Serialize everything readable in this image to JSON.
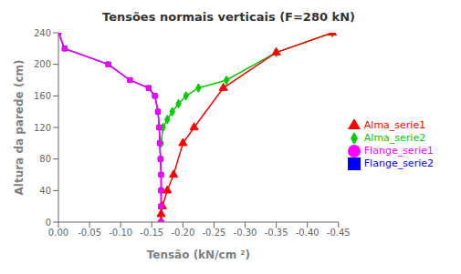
{
  "chart_data": {
    "type": "line",
    "title": "Tensões normais verticais (F=280 kN)",
    "xlabel": "Tensão (kN/cm ²)",
    "ylabel": "Altura da parede (cm)",
    "xlim": [
      0.0,
      -0.45
    ],
    "ylim": [
      0,
      240
    ],
    "xticks": [
      {
        "value": 0.0,
        "label": "0.00"
      },
      {
        "value": -0.05,
        "label": "-0.05"
      },
      {
        "value": -0.1,
        "label": "-0.10"
      },
      {
        "value": -0.15,
        "label": "-0.15"
      },
      {
        "value": -0.2,
        "label": "-0.20"
      },
      {
        "value": -0.25,
        "label": "-0.25"
      },
      {
        "value": -0.3,
        "label": "-0.30"
      },
      {
        "value": -0.35,
        "label": "-0.35"
      },
      {
        "value": -0.4,
        "label": "-0.40"
      },
      {
        "value": -0.45,
        "label": "-0.45"
      }
    ],
    "yticks": [
      0,
      40,
      80,
      120,
      160,
      200,
      240
    ],
    "grid": false,
    "legend": "right",
    "series": [
      {
        "name": "Flange_serie2",
        "color": "#0000FF",
        "marker": "square",
        "x": [
          0.0,
          -0.01,
          -0.08,
          -0.115,
          -0.145,
          -0.155,
          -0.16,
          -0.162,
          -0.163,
          -0.164,
          -0.165,
          -0.165,
          -0.165,
          -0.165
        ],
        "values": [
          240,
          220,
          200,
          180,
          170,
          160,
          140,
          120,
          100,
          80,
          60,
          40,
          20,
          0
        ]
      },
      {
        "name": "Alma_serie2",
        "color": "#00CC00",
        "marker": "diamond",
        "x": [
          -0.165,
          -0.168,
          -0.175,
          -0.183,
          -0.193,
          -0.205,
          -0.225,
          -0.27,
          -0.35,
          -0.44
        ],
        "values": [
          100,
          120,
          130,
          140,
          150,
          160,
          170,
          180,
          215,
          240
        ]
      },
      {
        "name": "Alma_serie1",
        "color": "#FF0000",
        "marker": "triangle",
        "x": [
          -0.165,
          -0.165,
          -0.167,
          -0.175,
          -0.185,
          -0.2,
          -0.218,
          -0.265,
          -0.35,
          -0.44
        ],
        "values": [
          0,
          10,
          20,
          40,
          60,
          100,
          120,
          170,
          215,
          240
        ]
      },
      {
        "name": "Flange_serie1",
        "color": "#FF00FF",
        "marker": "circle",
        "x": [
          0.0,
          -0.01,
          -0.08,
          -0.115,
          -0.145,
          -0.155,
          -0.16,
          -0.162,
          -0.163,
          -0.164,
          -0.165,
          -0.165,
          -0.165,
          -0.165
        ],
        "values": [
          240,
          220,
          200,
          180,
          170,
          160,
          140,
          120,
          100,
          80,
          60,
          40,
          20,
          0
        ]
      }
    ]
  }
}
